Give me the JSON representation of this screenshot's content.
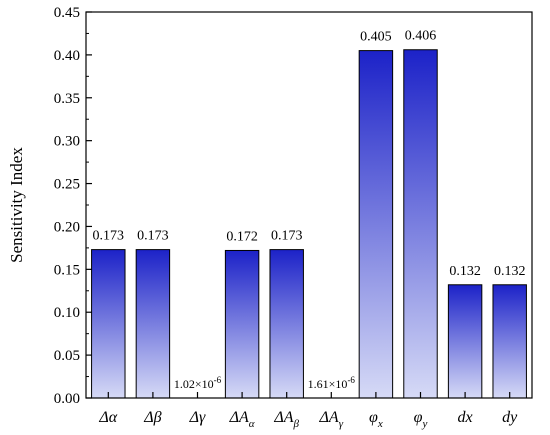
{
  "chart_data": {
    "type": "bar",
    "ylabel": "Sensitivity Index",
    "xlabel": "",
    "ylim": [
      0,
      0.45
    ],
    "yticks": [
      "0.00",
      "0.05",
      "0.10",
      "0.15",
      "0.20",
      "0.25",
      "0.30",
      "0.35",
      "0.40",
      "0.45"
    ],
    "categories": [
      {
        "base": "Δα",
        "sub": ""
      },
      {
        "base": "Δβ",
        "sub": ""
      },
      {
        "base": "Δγ",
        "sub": ""
      },
      {
        "base": "ΔA",
        "sub": "α"
      },
      {
        "base": "ΔA",
        "sub": "β"
      },
      {
        "base": "ΔA",
        "sub": "γ"
      },
      {
        "base": "φ",
        "sub": "x"
      },
      {
        "base": "φ",
        "sub": "y"
      },
      {
        "base": "dx",
        "sub": ""
      },
      {
        "base": "dy",
        "sub": ""
      }
    ],
    "values": [
      0.173,
      0.173,
      1.02e-06,
      0.172,
      0.173,
      1.61e-06,
      0.405,
      0.406,
      0.132,
      0.132
    ],
    "data_labels": [
      {
        "mantissa": "0.173",
        "exp": ""
      },
      {
        "mantissa": "0.173",
        "exp": ""
      },
      {
        "mantissa": "1.02×10",
        "exp": "-6"
      },
      {
        "mantissa": "0.172",
        "exp": ""
      },
      {
        "mantissa": "0.173",
        "exp": ""
      },
      {
        "mantissa": "1.61×10",
        "exp": "-6"
      },
      {
        "mantissa": "0.405",
        "exp": ""
      },
      {
        "mantissa": "0.406",
        "exp": ""
      },
      {
        "mantissa": "0.132",
        "exp": ""
      },
      {
        "mantissa": "0.132",
        "exp": ""
      }
    ],
    "bar_color_top": "#1c22c8",
    "bar_color_bottom": "#d6daf6",
    "grid": false
  }
}
